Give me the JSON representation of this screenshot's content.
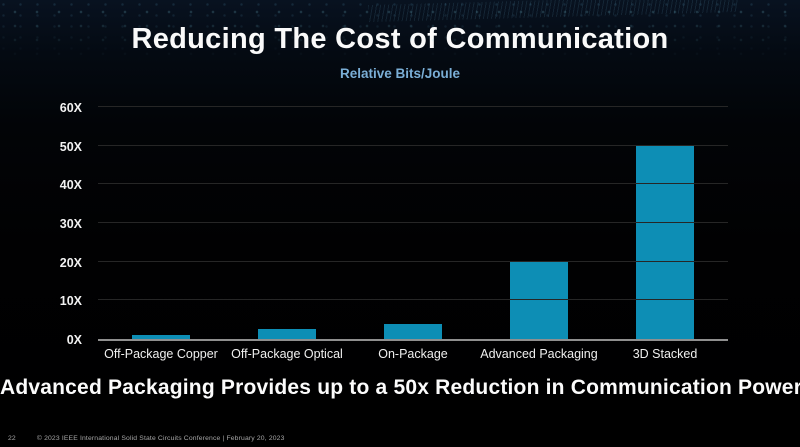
{
  "slide": {
    "title": "Reducing The Cost of Communication",
    "takeaway": "Advanced Packaging Provides up to a 50x Reduction in Communication Power",
    "footer": {
      "page_number": "22",
      "text": "© 2023 IEEE International Solid State Circuits Conference  |  February 20, 2023"
    }
  },
  "chart_data": {
    "type": "bar",
    "title": "Relative Bits/Joule",
    "categories": [
      "Off-Package Copper",
      "Off-Package Optical",
      "On-Package",
      "Advanced Packaging",
      "3D Stacked"
    ],
    "values": [
      1,
      2.5,
      4,
      20,
      50
    ],
    "xlabel": "",
    "ylabel": "",
    "ylim": [
      0,
      60
    ],
    "yticks": [
      0,
      10,
      20,
      30,
      40,
      50,
      60
    ],
    "ytick_labels": [
      "0X",
      "10X",
      "20X",
      "30X",
      "40X",
      "50X",
      "60X"
    ],
    "grid": true,
    "legend": false,
    "bar_color": "#0d8eb5"
  },
  "colors": {
    "background": "#04070b",
    "bar": "#0d8eb5",
    "subtitle_text": "#7aaed6",
    "title_text": "#fafafa",
    "gridline": "#262626",
    "axis_line": "#8f8f8f",
    "footer_text": "#a6a6a6"
  }
}
